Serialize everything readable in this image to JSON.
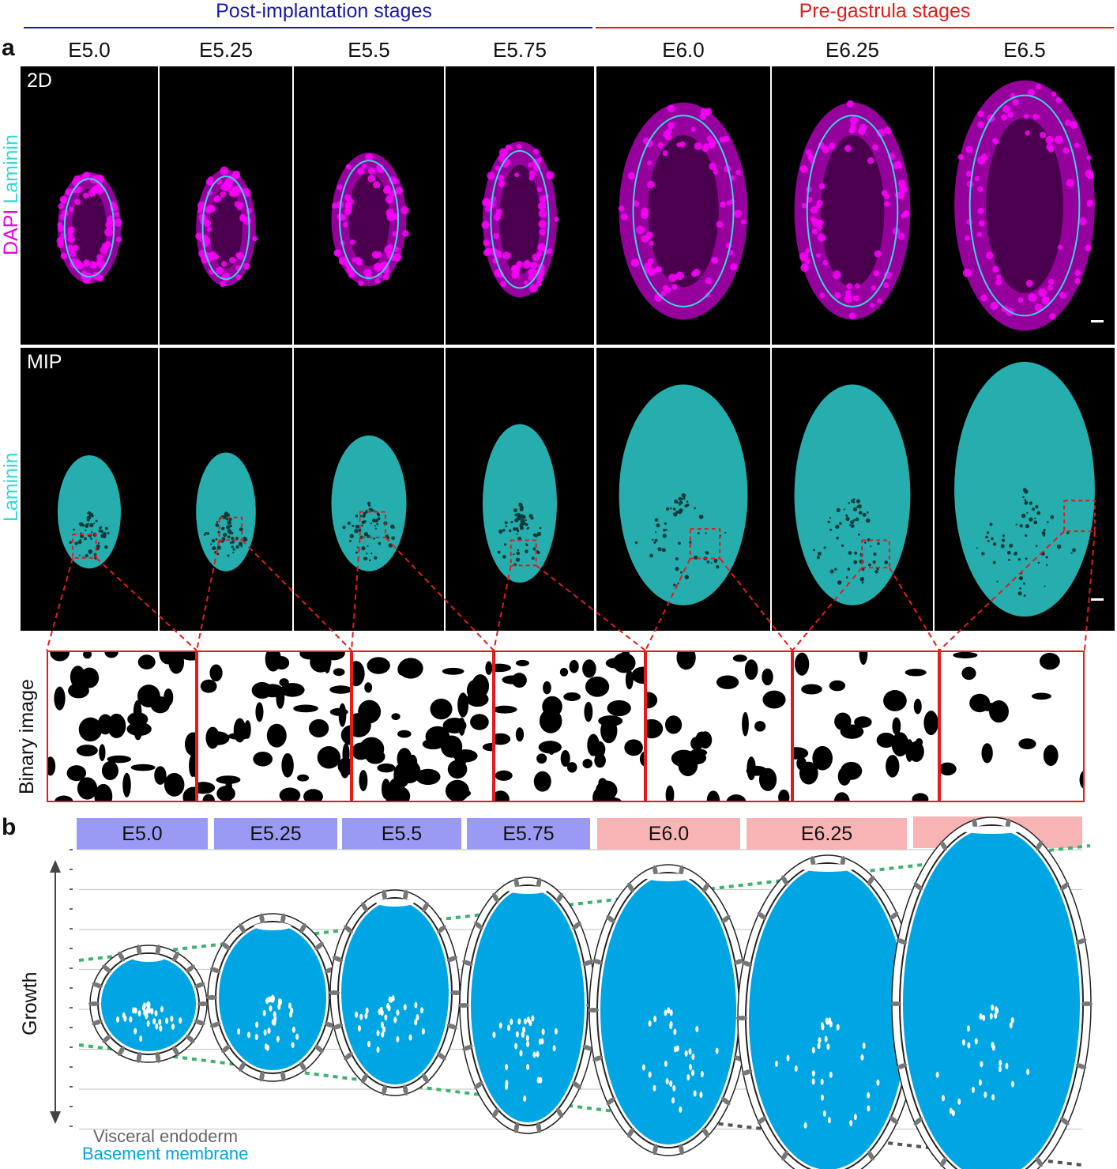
{
  "headers": {
    "post_implantation": "Post-implantation stages",
    "pre_gastrula": "Pre-gastrula stages"
  },
  "panel_a": "a",
  "panel_b": "b",
  "stages": [
    "E5.0",
    "E5.25",
    "E5.5",
    "E5.75",
    "E6.0",
    "E6.25",
    "E6.5"
  ],
  "rows": {
    "row1_tag": "2D",
    "row2_tag": "MIP",
    "row1_axis_dapi": "DAPI",
    "row1_axis_laminin": "Laminin",
    "row2_axis": "Laminin",
    "row3_axis": "Binary image"
  },
  "panel_b_labels": {
    "growth": "Growth",
    "visceral_endoderm": "Visceral endoderm",
    "basement_membrane": "Basement membrane"
  },
  "colors": {
    "post_blue": "#1a1aa8",
    "pre_red": "#e41a1c",
    "magenta": "#e600e6",
    "cyan": "#2fd9d9",
    "stage_blue_box": "#9a9af5",
    "stage_red_box": "#f8b4b4",
    "bm_fill": "#00a6e4",
    "growth_green": "#3cb371"
  }
}
